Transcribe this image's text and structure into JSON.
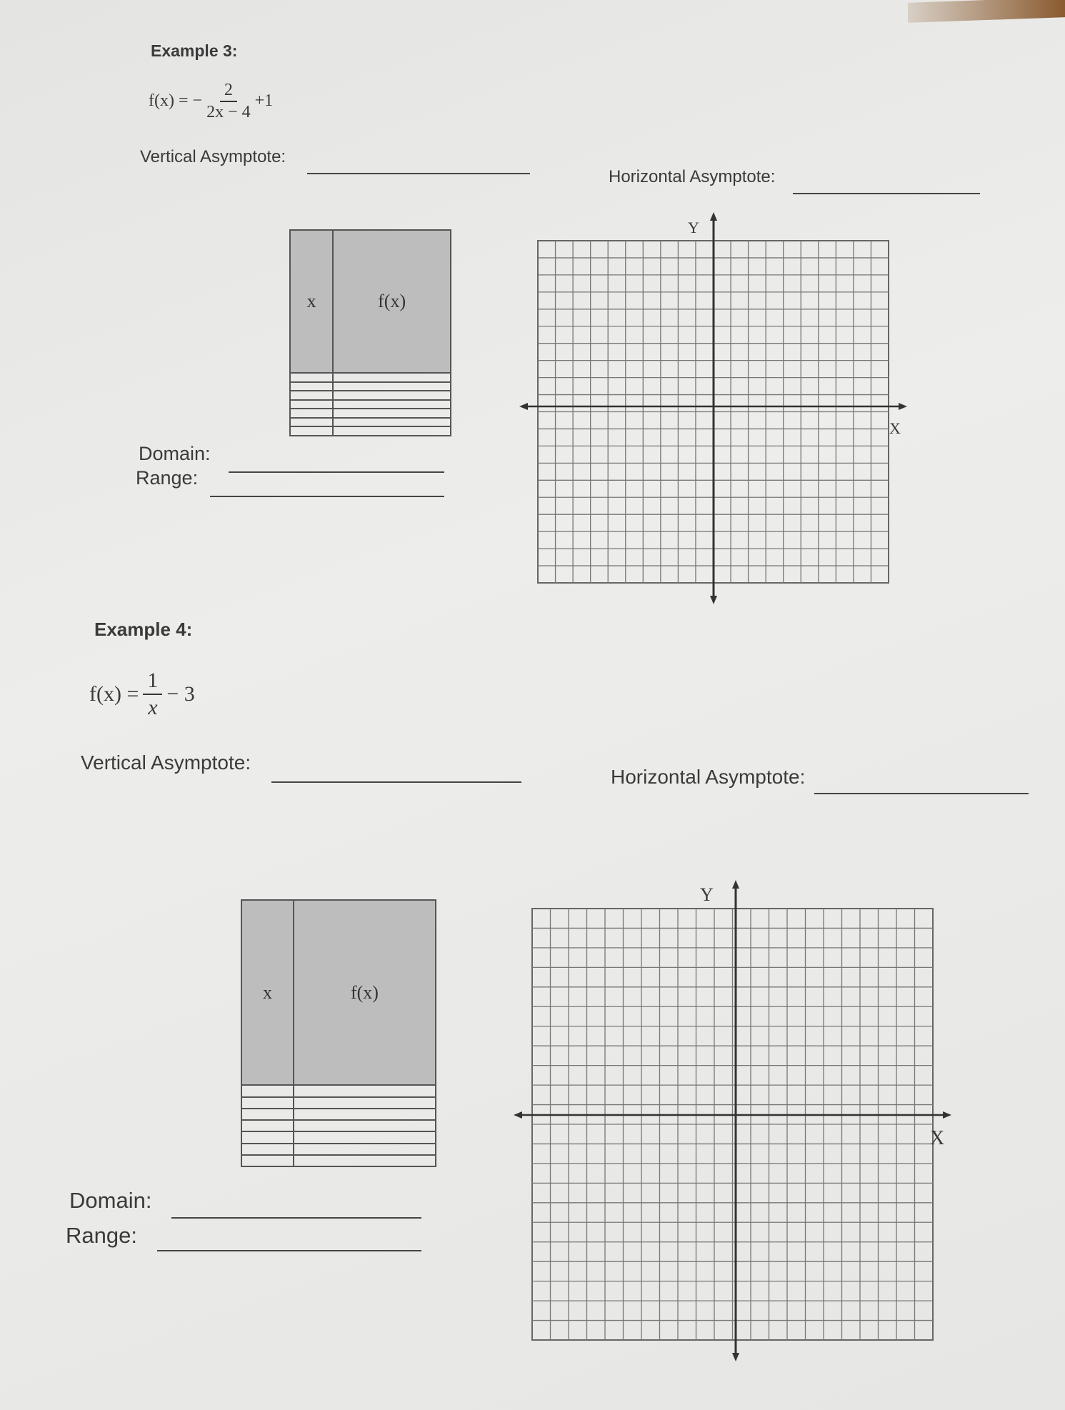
{
  "examples": [
    {
      "title": "Example 3:",
      "function": {
        "lhs": "f(x) =",
        "sign": "−",
        "numerator": "2",
        "denominator": "2x − 4",
        "tail": "+1"
      },
      "vertical_asymptote_label": "Vertical Asymptote:",
      "horizontal_asymptote_label": "Horizontal Asymptote:",
      "table": {
        "headers": [
          "x",
          "f(x)"
        ],
        "rows": 7
      },
      "domain_label": "Domain:",
      "range_label": "Range:",
      "graph": {
        "y_label": "Y",
        "x_label": "X"
      }
    },
    {
      "title": "Example 4:",
      "function": {
        "lhs": "f(x) =",
        "sign": "",
        "numerator": "1",
        "denominator": "x",
        "tail": "− 3"
      },
      "vertical_asymptote_label": "Vertical Asymptote:",
      "horizontal_asymptote_label": "Horizontal Asymptote:",
      "table": {
        "headers": [
          "x",
          "f(x)"
        ],
        "rows": 7
      },
      "domain_label": "Domain:",
      "range_label": "Range:",
      "graph": {
        "y_label": "Y",
        "x_label": "X"
      }
    }
  ]
}
